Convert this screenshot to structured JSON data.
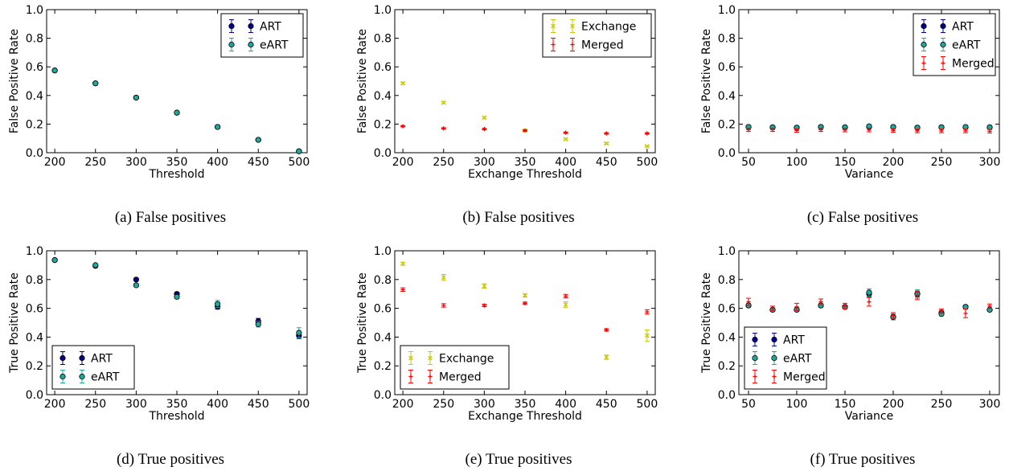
{
  "colors": {
    "ART": "#00008b",
    "eART": "#20a8a0",
    "Exchange": "#c8c800",
    "Merged": "#ff0000"
  },
  "chart_data": [
    {
      "id": "a",
      "type": "scatter",
      "caption": "(a) False positives",
      "xlabel": "Threshold",
      "ylabel": "False Positive Rate",
      "xlim": [
        190,
        510
      ],
      "ylim": [
        0.0,
        1.0
      ],
      "xticks": [
        "200",
        "250",
        "300",
        "350",
        "400",
        "450",
        "500"
      ],
      "yticks": [
        "0.0",
        "0.2",
        "0.4",
        "0.6",
        "0.8",
        "1.0"
      ],
      "legend": "top-right",
      "x": [
        200,
        250,
        300,
        350,
        400,
        450,
        500
      ],
      "series": [
        {
          "name": "ART",
          "marker": "dot",
          "values": [
            0.575,
            0.485,
            0.385,
            0.28,
            0.18,
            0.09,
            0.01
          ],
          "err": [
            0.005,
            0.005,
            0.005,
            0.005,
            0.005,
            0.004,
            0.004
          ]
        },
        {
          "name": "eART",
          "marker": "circle",
          "values": [
            0.575,
            0.485,
            0.385,
            0.28,
            0.18,
            0.09,
            0.01
          ],
          "err": [
            0.005,
            0.005,
            0.005,
            0.005,
            0.005,
            0.004,
            0.004
          ]
        }
      ]
    },
    {
      "id": "b",
      "type": "scatter",
      "caption": "(b) False positives",
      "xlabel": "Exchange Threshold",
      "ylabel": "False Positive Rate",
      "xlim": [
        190,
        510
      ],
      "ylim": [
        0.0,
        1.0
      ],
      "xticks": [
        "200",
        "250",
        "300",
        "350",
        "400",
        "450",
        "500"
      ],
      "yticks": [
        "0.0",
        "0.2",
        "0.4",
        "0.6",
        "0.8",
        "1.0"
      ],
      "legend": "top-right",
      "x": [
        200,
        250,
        300,
        350,
        400,
        450,
        500
      ],
      "series": [
        {
          "name": "Exchange",
          "marker": "x",
          "values": [
            0.485,
            0.35,
            0.245,
            0.155,
            0.095,
            0.065,
            0.045
          ],
          "err": [
            0.008,
            0.008,
            0.008,
            0.006,
            0.006,
            0.005,
            0.005
          ]
        },
        {
          "name": "Merged",
          "marker": "plus",
          "values": [
            0.185,
            0.17,
            0.165,
            0.155,
            0.14,
            0.135,
            0.135
          ],
          "err": [
            0.005,
            0.005,
            0.005,
            0.005,
            0.005,
            0.005,
            0.005
          ]
        }
      ]
    },
    {
      "id": "c",
      "type": "scatter",
      "caption": "(c) False positives",
      "xlabel": "Variance",
      "ylabel": "False Positive Rate",
      "xlim": [
        40,
        310
      ],
      "ylim": [
        0.0,
        1.0
      ],
      "xticks": [
        "50",
        "100",
        "150",
        "200",
        "250",
        "300"
      ],
      "yticks": [
        "0.0",
        "0.2",
        "0.4",
        "0.6",
        "0.8",
        "1.0"
      ],
      "legend": "top-right",
      "x": [
        50,
        75,
        100,
        125,
        150,
        175,
        200,
        225,
        250,
        275,
        300
      ],
      "series": [
        {
          "name": "ART",
          "marker": "dot",
          "values": [
            0.18,
            0.178,
            0.175,
            0.18,
            0.178,
            0.18,
            0.18,
            0.175,
            0.178,
            0.178,
            0.178
          ],
          "err": [
            0.005,
            0.005,
            0.005,
            0.005,
            0.005,
            0.005,
            0.005,
            0.005,
            0.005,
            0.005,
            0.005
          ]
        },
        {
          "name": "eART",
          "marker": "circle",
          "values": [
            0.18,
            0.178,
            0.175,
            0.18,
            0.178,
            0.185,
            0.18,
            0.175,
            0.178,
            0.18,
            0.178
          ],
          "err": [
            0.005,
            0.005,
            0.005,
            0.005,
            0.005,
            0.005,
            0.005,
            0.005,
            0.005,
            0.005,
            0.005
          ]
        },
        {
          "name": "Merged",
          "marker": "plus",
          "values": [
            0.16,
            0.16,
            0.155,
            0.16,
            0.158,
            0.158,
            0.155,
            0.152,
            0.152,
            0.152,
            0.15
          ],
          "err": [
            0.012,
            0.012,
            0.012,
            0.012,
            0.012,
            0.012,
            0.012,
            0.012,
            0.012,
            0.012,
            0.012
          ]
        }
      ]
    },
    {
      "id": "d",
      "type": "scatter",
      "caption": "(d) True positives",
      "xlabel": "Threshold",
      "ylabel": "True Positive Rate",
      "xlim": [
        190,
        510
      ],
      "ylim": [
        0.0,
        1.0
      ],
      "xticks": [
        "200",
        "250",
        "300",
        "350",
        "400",
        "450",
        "500"
      ],
      "yticks": [
        "0.0",
        "0.2",
        "0.4",
        "0.6",
        "0.8",
        "1.0"
      ],
      "legend": "bottom-left",
      "x": [
        200,
        250,
        300,
        350,
        400,
        450,
        500
      ],
      "series": [
        {
          "name": "ART",
          "marker": "dot",
          "values": [
            0.935,
            0.895,
            0.8,
            0.7,
            0.61,
            0.51,
            0.41
          ],
          "err": [
            0.008,
            0.008,
            0.01,
            0.012,
            0.015,
            0.02,
            0.02
          ]
        },
        {
          "name": "eART",
          "marker": "circle",
          "values": [
            0.935,
            0.9,
            0.76,
            0.68,
            0.63,
            0.49,
            0.43
          ],
          "err": [
            0.008,
            0.008,
            0.01,
            0.012,
            0.025,
            0.02,
            0.035
          ]
        }
      ]
    },
    {
      "id": "e",
      "type": "scatter",
      "caption": "(e) True positives",
      "xlabel": "Exchange Threshold",
      "ylabel": "True Positive Rate",
      "xlim": [
        190,
        510
      ],
      "ylim": [
        0.0,
        1.0
      ],
      "xticks": [
        "200",
        "250",
        "300",
        "350",
        "400",
        "450",
        "500"
      ],
      "yticks": [
        "0.0",
        "0.2",
        "0.4",
        "0.6",
        "0.8",
        "1.0"
      ],
      "legend": "bottom-left",
      "x": [
        200,
        250,
        300,
        350,
        400,
        450,
        500
      ],
      "series": [
        {
          "name": "Exchange",
          "marker": "x",
          "values": [
            0.91,
            0.815,
            0.755,
            0.69,
            0.625,
            0.26,
            0.41
          ],
          "err": [
            0.01,
            0.02,
            0.015,
            0.012,
            0.02,
            0.015,
            0.04
          ]
        },
        {
          "name": "Merged",
          "marker": "plus",
          "values": [
            0.73,
            0.62,
            0.62,
            0.635,
            0.685,
            0.45,
            0.575
          ],
          "err": [
            0.012,
            0.012,
            0.008,
            0.008,
            0.012,
            0.008,
            0.015
          ]
        }
      ]
    },
    {
      "id": "f",
      "type": "scatter",
      "caption": "(f) True positives",
      "xlabel": "Variance",
      "ylabel": "True Positive Rate",
      "xlim": [
        40,
        310
      ],
      "ylim": [
        0.0,
        1.0
      ],
      "xticks": [
        "50",
        "100",
        "150",
        "200",
        "250",
        "300"
      ],
      "yticks": [
        "0.0",
        "0.2",
        "0.4",
        "0.6",
        "0.8",
        "1.0"
      ],
      "legend": "bottom-left",
      "x": [
        50,
        75,
        100,
        125,
        150,
        175,
        200,
        225,
        250,
        275,
        300
      ],
      "series": [
        {
          "name": "ART",
          "marker": "dot",
          "values": [
            0.62,
            0.59,
            0.59,
            0.62,
            0.61,
            0.7,
            0.54,
            0.7,
            0.57,
            0.61,
            0.59
          ],
          "err": [
            0.012,
            0.012,
            0.012,
            0.012,
            0.012,
            0.02,
            0.02,
            0.02,
            0.012,
            0.012,
            0.012
          ]
        },
        {
          "name": "eART",
          "marker": "circle",
          "values": [
            0.62,
            0.59,
            0.59,
            0.62,
            0.61,
            0.71,
            0.54,
            0.7,
            0.56,
            0.61,
            0.59
          ],
          "err": [
            0.012,
            0.012,
            0.012,
            0.012,
            0.012,
            0.025,
            0.02,
            0.03,
            0.012,
            0.012,
            0.012
          ]
        },
        {
          "name": "Merged",
          "marker": "plus",
          "values": [
            0.645,
            0.6,
            0.61,
            0.645,
            0.615,
            0.645,
            0.55,
            0.69,
            0.58,
            0.565,
            0.615
          ],
          "err": [
            0.025,
            0.015,
            0.025,
            0.02,
            0.02,
            0.03,
            0.02,
            0.03,
            0.015,
            0.03,
            0.015
          ]
        }
      ]
    }
  ]
}
